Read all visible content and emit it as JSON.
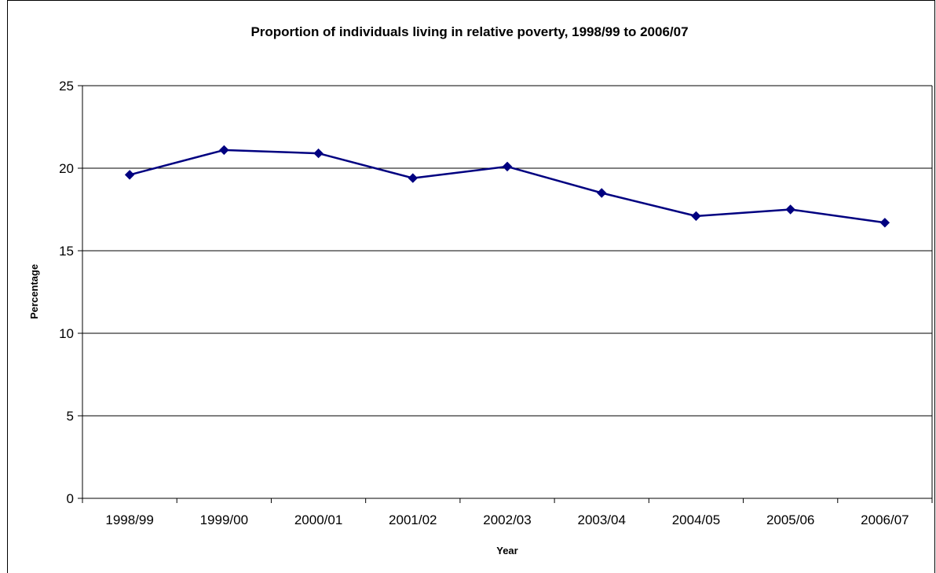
{
  "chart_data": {
    "type": "line",
    "title": "Proportion of individuals living in relative poverty, 1998/99 to 2006/07",
    "xlabel": "Year",
    "ylabel": "Percentage",
    "categories": [
      "1998/99",
      "1999/00",
      "2000/01",
      "2001/02",
      "2002/03",
      "2003/04",
      "2004/05",
      "2005/06",
      "2006/07"
    ],
    "series": [
      {
        "values": [
          19.6,
          21.1,
          20.9,
          19.4,
          20.1,
          18.5,
          17.1,
          17.5,
          16.7
        ],
        "color": "#000080"
      }
    ],
    "ylim": [
      0,
      25
    ],
    "yticks": [
      0,
      5,
      10,
      15,
      20,
      25
    ],
    "grid": true,
    "legend": "none",
    "marker": "diamond"
  }
}
